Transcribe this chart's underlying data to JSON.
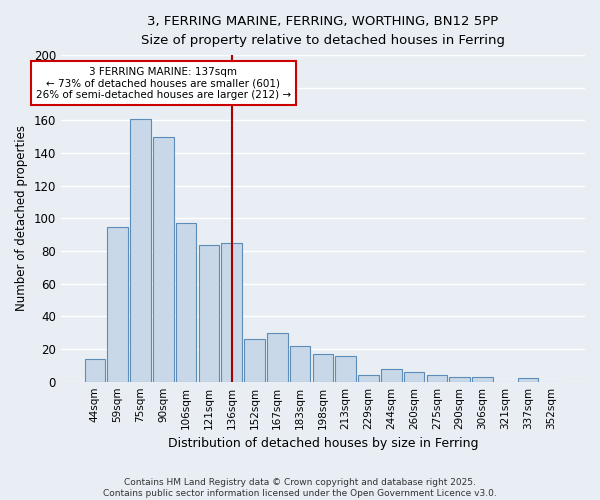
{
  "title_line1": "3, FERRING MARINE, FERRING, WORTHING, BN12 5PP",
  "title_line2": "Size of property relative to detached houses in Ferring",
  "xlabel": "Distribution of detached houses by size in Ferring",
  "ylabel": "Number of detached properties",
  "categories": [
    "44sqm",
    "59sqm",
    "75sqm",
    "90sqm",
    "106sqm",
    "121sqm",
    "136sqm",
    "152sqm",
    "167sqm",
    "183sqm",
    "198sqm",
    "213sqm",
    "229sqm",
    "244sqm",
    "260sqm",
    "275sqm",
    "290sqm",
    "306sqm",
    "321sqm",
    "337sqm",
    "352sqm"
  ],
  "values": [
    14,
    95,
    161,
    150,
    97,
    84,
    85,
    26,
    30,
    22,
    17,
    16,
    4,
    8,
    6,
    4,
    3,
    3,
    0,
    2,
    0
  ],
  "bar_color": "#c8d8e8",
  "bar_edge_color": "#5b8db8",
  "vline_x_index": 6,
  "vline_color": "#aa0000",
  "annotation_text": "3 FERRING MARINE: 137sqm\n← 73% of detached houses are smaller (601)\n26% of semi-detached houses are larger (212) →",
  "annotation_box_color": "#ffffff",
  "annotation_box_edge": "#cc0000",
  "ylim": [
    0,
    200
  ],
  "yticks": [
    0,
    20,
    40,
    60,
    80,
    100,
    120,
    140,
    160,
    180,
    200
  ],
  "bg_color": "#e8eef4",
  "grid_color": "#ffffff",
  "title_fontsize": 10,
  "subtitle_fontsize": 9,
  "footnote": "Contains HM Land Registry data © Crown copyright and database right 2025.\nContains public sector information licensed under the Open Government Licence v3.0."
}
